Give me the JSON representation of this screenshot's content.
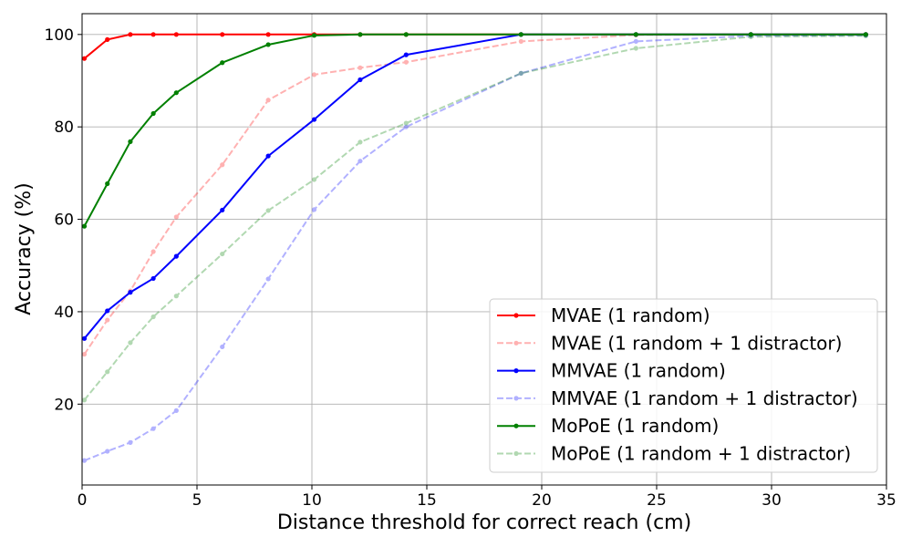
{
  "chart_data": {
    "type": "line",
    "title": "",
    "xlabel": "Distance threshold for correct reach (cm)",
    "ylabel": "Accuracy (%)",
    "xlim": [
      0,
      35
    ],
    "ylim": [
      2.5,
      104.5
    ],
    "xticks": [
      0,
      5,
      10,
      15,
      20,
      25,
      30,
      35
    ],
    "yticks": [
      20,
      40,
      60,
      80,
      100
    ],
    "grid": true,
    "legend_position": "bottom-right",
    "series": [
      {
        "name": "MVAE (1 random)",
        "color": "#ff0000",
        "style": "solid",
        "opacity": 1,
        "x": [
          0.1,
          1.1,
          2.1,
          3.1,
          4.1,
          6.1,
          8.1,
          10.1,
          12.1,
          14.1,
          19.1,
          24.1,
          29.1,
          34.1
        ],
        "y": [
          94.8,
          98.9,
          100,
          100,
          100,
          100,
          100,
          100,
          100,
          100,
          100,
          100,
          100,
          100
        ]
      },
      {
        "name": "MVAE (1 random + 1 distractor)",
        "color": "#ff0000",
        "style": "dashed",
        "opacity": 0.3,
        "x": [
          0.1,
          1.1,
          2.1,
          3.1,
          4.1,
          6.1,
          8.1,
          10.1,
          12.1,
          14.1,
          19.1,
          24.1,
          29.1,
          34.1
        ],
        "y": [
          30.8,
          38.2,
          44.5,
          53.0,
          60.5,
          71.8,
          85.8,
          91.3,
          92.8,
          94.0,
          98.5,
          99.9,
          100,
          100
        ]
      },
      {
        "name": "MMVAE (1 random)",
        "color": "#0000ff",
        "style": "solid",
        "opacity": 1,
        "x": [
          0.1,
          1.1,
          2.1,
          3.1,
          4.1,
          6.1,
          8.1,
          10.1,
          12.1,
          14.1,
          19.1,
          24.1,
          29.1,
          34.1
        ],
        "y": [
          34.2,
          40.2,
          44.2,
          47.2,
          52.0,
          62.0,
          73.7,
          81.6,
          90.2,
          95.6,
          100,
          100,
          100,
          100
        ]
      },
      {
        "name": "MMVAE (1 random + 1 distractor)",
        "color": "#0000ff",
        "style": "dashed",
        "opacity": 0.3,
        "x": [
          0.1,
          1.1,
          2.1,
          3.1,
          4.1,
          6.1,
          8.1,
          10.1,
          12.1,
          14.1,
          19.1,
          24.1,
          29.1,
          34.1
        ],
        "y": [
          7.8,
          9.8,
          11.7,
          14.7,
          18.6,
          32.4,
          47.1,
          62.1,
          72.6,
          80.0,
          91.6,
          98.5,
          99.7,
          99.8
        ]
      },
      {
        "name": "MoPoE (1 random)",
        "color": "#008000",
        "style": "solid",
        "opacity": 1,
        "x": [
          0.1,
          1.1,
          2.1,
          3.1,
          4.1,
          6.1,
          8.1,
          10.1,
          12.1,
          14.1,
          19.1,
          24.1,
          29.1,
          34.1
        ],
        "y": [
          58.5,
          67.7,
          76.8,
          82.9,
          87.4,
          93.9,
          97.8,
          99.8,
          100,
          100,
          100,
          100,
          100,
          100
        ]
      },
      {
        "name": "MoPoE (1 random + 1 distractor)",
        "color": "#008000",
        "style": "dashed",
        "opacity": 0.3,
        "x": [
          0.1,
          1.1,
          2.1,
          3.1,
          4.1,
          6.1,
          8.1,
          10.1,
          12.1,
          14.1,
          19.1,
          24.1,
          29.1,
          34.1
        ],
        "y": [
          20.9,
          27.0,
          33.3,
          38.9,
          43.4,
          52.5,
          61.9,
          68.6,
          76.7,
          80.8,
          91.6,
          97.0,
          99.5,
          99.7
        ]
      }
    ]
  }
}
